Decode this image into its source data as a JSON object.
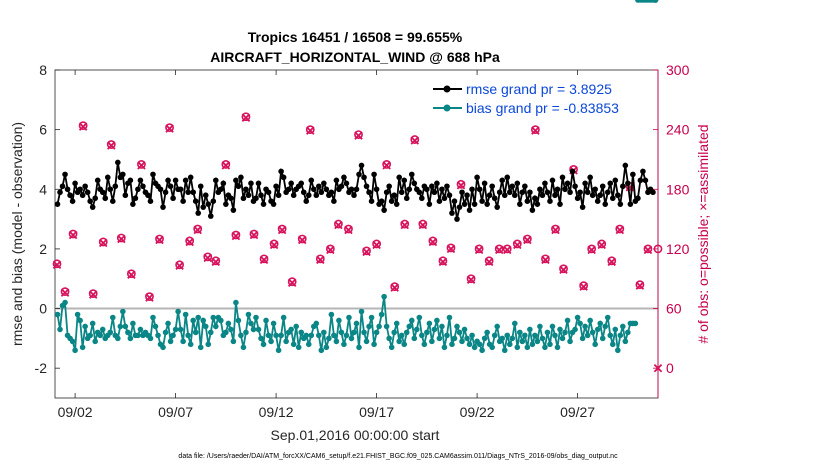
{
  "chart_data": {
    "type": "line",
    "title": "Tropics 16451 / 16508 = 99.655%",
    "subtitle": "AIRCRAFT_HORIZONTAL_WIND @ 688 hPa",
    "xlabel": "Sep.01,2016 00:00:00 start",
    "ylabel": "rmse and bias (model - observation)",
    "ylabel_right": "# of obs: o=possible; ×=assimilated",
    "footer": "data file: /Users/raeder/DAI/ATM_forcXX/CAM6_setup/f.e21.FHIST_BGC.f09_025.CAM6assim.011/Diags_NTrS_2016-09/obs_diag_output.nc",
    "x_tick_labels": [
      "09/02",
      "09/07",
      "09/12",
      "09/17",
      "09/22",
      "09/27"
    ],
    "x_tick_days": [
      2,
      7,
      12,
      17,
      22,
      27
    ],
    "x_range_days": [
      1.0,
      31.0
    ],
    "ylim": [
      -3,
      8
    ],
    "y_ticks": [
      -2,
      0,
      2,
      4,
      6,
      8
    ],
    "ylim_right": [
      -30,
      300
    ],
    "y_ticks_right": [
      0,
      60,
      120,
      180,
      240,
      300
    ],
    "zero_line": 0,
    "legend_position": "top-right",
    "legend": [
      {
        "label": "rmse grand pr = 3.8925",
        "color": "#000000"
      },
      {
        "label": "bias grand pr = -0.83853",
        "color": "#0b8686"
      }
    ],
    "x_days": [
      1.125,
      1.25,
      1.375,
      1.5,
      1.625,
      1.75,
      1.875,
      2.0,
      2.125,
      2.25,
      2.375,
      2.5,
      2.625,
      2.75,
      2.875,
      3.0,
      3.125,
      3.25,
      3.375,
      3.5,
      3.625,
      3.75,
      3.875,
      4.0,
      4.125,
      4.25,
      4.375,
      4.5,
      4.625,
      4.75,
      4.875,
      5.0,
      5.125,
      5.25,
      5.375,
      5.5,
      5.625,
      5.75,
      5.875,
      6.0,
      6.125,
      6.25,
      6.375,
      6.5,
      6.625,
      6.75,
      6.875,
      7.0,
      7.125,
      7.25,
      7.375,
      7.5,
      7.625,
      7.75,
      7.875,
      8.0,
      8.125,
      8.25,
      8.375,
      8.5,
      8.625,
      8.75,
      8.875,
      9.0,
      9.125,
      9.25,
      9.375,
      9.5,
      9.625,
      9.75,
      9.875,
      10.0,
      10.125,
      10.25,
      10.375,
      10.5,
      10.625,
      10.75,
      10.875,
      11.0,
      11.125,
      11.25,
      11.375,
      11.5,
      11.625,
      11.75,
      11.875,
      12.0,
      12.125,
      12.25,
      12.375,
      12.5,
      12.625,
      12.75,
      12.875,
      13.0,
      13.125,
      13.25,
      13.375,
      13.5,
      13.625,
      13.75,
      13.875,
      14.0,
      14.125,
      14.25,
      14.375,
      14.5,
      14.625,
      14.75,
      14.875,
      15.0,
      15.125,
      15.25,
      15.375,
      15.5,
      15.625,
      15.75,
      15.875,
      16.0,
      16.125,
      16.25,
      16.375,
      16.5,
      16.625,
      16.75,
      16.875,
      17.0,
      17.125,
      17.25,
      17.375,
      17.5,
      17.625,
      17.75,
      17.875,
      18.0,
      18.125,
      18.25,
      18.375,
      18.5,
      18.625,
      18.75,
      18.875,
      19.0,
      19.125,
      19.25,
      19.375,
      19.5,
      19.625,
      19.75,
      19.875,
      20.0,
      20.125,
      20.25,
      20.375,
      20.5,
      20.625,
      20.75,
      20.875,
      21.0,
      21.125,
      21.25,
      21.375,
      21.5,
      21.625,
      21.75,
      21.875,
      22.0,
      22.125,
      22.25,
      22.375,
      22.5,
      22.625,
      22.75,
      22.875,
      23.0,
      23.125,
      23.25,
      23.375,
      23.5,
      23.625,
      23.75,
      23.875,
      24.0,
      24.125,
      24.25,
      24.375,
      24.5,
      24.625,
      24.75,
      24.875,
      25.0,
      25.125,
      25.25,
      25.375,
      25.5,
      25.625,
      25.75,
      25.875,
      26.0,
      26.125,
      26.25,
      26.375,
      26.5,
      26.625,
      26.75,
      26.875,
      27.0,
      27.125,
      27.25,
      27.375,
      27.5,
      27.625,
      27.75,
      27.875,
      28.0,
      28.125,
      28.25,
      28.375,
      28.5,
      28.625,
      28.75,
      28.875,
      29.0,
      29.125,
      29.25,
      29.375,
      29.5,
      29.625,
      29.75,
      29.875,
      30.0,
      30.125,
      30.25,
      30.375,
      30.5,
      30.625,
      30.75,
      30.875
    ],
    "series": [
      {
        "name": "rmse grand pr = 3.8925",
        "axis": "left",
        "color": "#000000",
        "values": [
          3.5,
          3.9,
          4.1,
          4.5,
          4.0,
          3.8,
          3.6,
          4.2,
          3.9,
          4.0,
          3.8,
          4.1,
          3.9,
          3.6,
          3.4,
          3.7,
          4.3,
          4.0,
          3.9,
          3.7,
          4.4,
          4.0,
          3.6,
          4.1,
          4.9,
          4.4,
          4.5,
          3.8,
          4.2,
          4.3,
          3.5,
          3.7,
          4.0,
          4.3,
          4.1,
          3.9,
          3.8,
          3.6,
          4.5,
          4.2,
          4.1,
          4.0,
          3.4,
          3.9,
          4.3,
          4.1,
          3.7,
          4.3,
          4.0,
          4.0,
          3.6,
          4.3,
          3.9,
          4.4,
          3.9,
          3.6,
          3.2,
          4.1,
          3.4,
          3.8,
          3.5,
          3.1,
          3.6,
          4.3,
          3.9,
          4.0,
          4.2,
          3.5,
          3.8,
          3.7,
          3.3,
          4.3,
          4.1,
          4.4,
          3.7,
          4.0,
          3.8,
          4.2,
          3.6,
          3.7,
          4.2,
          3.8,
          3.5,
          4.0,
          3.9,
          3.6,
          3.5,
          4.1,
          3.8,
          4.6,
          4.4,
          3.9,
          4.0,
          4.2,
          3.8,
          4.0,
          4.1,
          4.2,
          3.9,
          3.6,
          3.8,
          4.3,
          4.0,
          3.8,
          4.1,
          3.9,
          4.2,
          4.0,
          3.8,
          3.9,
          3.6,
          4.3,
          4.0,
          4.1,
          4.4,
          4.2,
          3.9,
          4.0,
          3.8,
          4.0,
          4.5,
          4.8,
          4.4,
          4.1,
          3.9,
          3.6,
          4.5,
          4.0,
          3.5,
          3.6,
          3.3,
          3.9,
          4.1,
          3.6,
          3.8,
          3.5,
          4.4,
          3.9,
          4.3,
          3.7,
          4.0,
          4.5,
          4.2,
          4.0,
          3.9,
          3.7,
          4.1,
          4.0,
          3.5,
          4.1,
          3.9,
          4.2,
          3.6,
          4.0,
          3.7,
          4.1,
          3.8,
          3.2,
          3.6,
          3.0,
          3.4,
          3.9,
          3.5,
          3.8,
          3.3,
          4.0,
          3.5,
          4.4,
          4.0,
          3.6,
          4.2,
          3.5,
          3.8,
          4.1,
          3.7,
          3.4,
          3.9,
          4.3,
          3.8,
          4.4,
          3.9,
          4.1,
          3.8,
          4.2,
          3.5,
          3.9,
          4.1,
          3.6,
          3.9,
          3.3,
          3.7,
          3.5,
          4.0,
          3.8,
          4.2,
          3.9,
          3.6,
          4.3,
          3.8,
          4.0,
          3.5,
          4.4,
          4.0,
          4.2,
          3.9,
          4.6,
          4.1,
          3.7,
          3.9,
          3.4,
          4.2,
          3.9,
          4.4,
          3.8,
          4.0,
          3.6,
          3.8,
          4.1,
          3.5,
          3.9,
          4.2,
          3.7,
          4.3,
          3.8,
          3.5,
          4.1,
          4.8,
          4.2,
          3.5,
          4.5,
          3.6,
          3.7,
          4.3,
          4.6,
          4.3,
          3.9,
          4.0,
          3.9
        ]
      },
      {
        "name": "bias grand pr = -0.83853",
        "axis": "left",
        "color": "#0b8686",
        "values": [
          -0.2,
          -0.7,
          0.1,
          0.2,
          -0.9,
          -1.0,
          -1.1,
          -1.4,
          -0.2,
          -0.4,
          -1.3,
          -0.6,
          -1.0,
          -0.9,
          -0.5,
          -1.1,
          -0.8,
          -0.9,
          -0.7,
          -1.0,
          -0.9,
          -0.8,
          -0.3,
          -0.9,
          -1.0,
          -0.6,
          -0.1,
          -0.6,
          -0.8,
          -1.0,
          -0.5,
          -0.9,
          -0.9,
          -0.7,
          -0.9,
          -0.8,
          -0.9,
          -1.0,
          -0.3,
          -0.6,
          -0.9,
          -1.2,
          -1.3,
          -0.8,
          -0.5,
          -1.1,
          -0.9,
          -0.7,
          -0.1,
          -0.7,
          -1.1,
          -0.2,
          -0.9,
          -1.2,
          -0.4,
          -0.8,
          -0.3,
          -1.3,
          -0.4,
          -0.6,
          -1.2,
          -0.8,
          -0.3,
          -0.6,
          -0.3,
          -0.4,
          -0.9,
          -0.8,
          -0.5,
          -0.7,
          -1.1,
          0.2,
          -0.4,
          -0.9,
          -1.3,
          -0.8,
          -0.2,
          -0.5,
          -0.7,
          -0.3,
          -0.7,
          -1.0,
          -1.2,
          -0.4,
          -0.9,
          -1.1,
          -0.5,
          -0.9,
          -1.4,
          -0.9,
          -0.3,
          -1.1,
          -0.8,
          -0.7,
          -1.2,
          -0.6,
          -1.3,
          -0.8,
          -1.0,
          -0.9,
          -1.2,
          -0.9,
          -0.6,
          -0.5,
          -0.9,
          -1.4,
          -0.8,
          -1.3,
          -1.0,
          -0.2,
          -0.9,
          -1.1,
          -0.4,
          -0.8,
          -1.2,
          -0.9,
          -0.3,
          -1.0,
          -0.8,
          -0.5,
          -1.3,
          -0.1,
          -0.8,
          -1.1,
          -0.6,
          -0.3,
          -1.2,
          -0.8,
          -0.6,
          -0.2,
          0.4,
          -0.6,
          -1.0,
          -1.3,
          -0.8,
          -0.5,
          -1.1,
          -0.9,
          -1.2,
          -0.8,
          -0.6,
          -0.4,
          -1.0,
          -0.7,
          -0.3,
          -0.9,
          -1.2,
          -0.8,
          -0.5,
          -1.1,
          -0.7,
          -0.4,
          -1.0,
          -0.6,
          -1.3,
          -0.9,
          -0.3,
          -1.2,
          -1.0,
          -0.6,
          -0.8,
          -1.1,
          -0.7,
          -1.0,
          -1.2,
          -0.9,
          -1.3,
          -1.1,
          -1.2,
          -1.4,
          -1.0,
          -0.8,
          -1.2,
          -1.3,
          -0.9,
          -0.6,
          -1.1,
          -1.0,
          -1.4,
          -0.9,
          -1.2,
          -1.0,
          -0.5,
          -1.3,
          -0.8,
          -1.1,
          -0.9,
          -1.3,
          -0.7,
          -1.2,
          -0.9,
          -1.1,
          -0.6,
          -1.0,
          -1.3,
          -0.8,
          -1.2,
          -0.6,
          -0.9,
          -1.3,
          -0.7,
          -1.0,
          -0.8,
          -0.4,
          -1.1,
          -0.8,
          -0.7,
          -0.3,
          -0.5,
          -1.0,
          -0.6,
          -0.9,
          -0.4,
          -0.8,
          -1.2,
          -0.7,
          -0.5,
          -1.0,
          -0.6,
          -0.3,
          -0.9,
          -1.2,
          -0.7,
          -1.4,
          -0.9,
          -0.6,
          -1.1,
          -0.8,
          -0.5,
          -0.5,
          -0.5
        ]
      },
      {
        "name": "",
        "axis": "right",
        "color": "#d6135c",
        "marker": "o",
        "x_days": [
          1.1,
          1.5,
          1.9,
          2.4,
          2.9,
          3.4,
          3.8,
          4.3,
          4.8,
          5.3,
          5.7,
          6.2,
          6.7,
          7.2,
          7.7,
          8.1,
          8.6,
          9.0,
          9.5,
          10.0,
          10.5,
          10.9,
          11.4,
          11.9,
          12.3,
          12.8,
          13.3,
          13.7,
          14.2,
          14.7,
          15.1,
          15.6,
          16.1,
          16.5,
          17.0,
          17.5,
          17.9,
          18.4,
          18.9,
          19.3,
          19.8,
          20.3,
          20.7,
          21.2,
          21.7,
          22.1,
          22.6,
          23.1,
          23.5,
          24.0,
          24.5,
          24.9,
          25.4,
          25.9,
          26.3,
          26.8,
          27.3,
          27.7,
          28.2,
          28.7,
          29.1,
          29.6,
          30.1,
          30.5,
          31.0
        ],
        "values": [
          105,
          77,
          135,
          244,
          75,
          127,
          225,
          131,
          95,
          205,
          72,
          130,
          242,
          104,
          128,
          140,
          112,
          108,
          205,
          134,
          253,
          135,
          110,
          125,
          140,
          87,
          130,
          240,
          110,
          120,
          145,
          140,
          235,
          118,
          125,
          205,
          82,
          145,
          230,
          145,
          128,
          108,
          121,
          185,
          90,
          120,
          108,
          120,
          120,
          125,
          130,
          240,
          110,
          140,
          100,
          200,
          83,
          120,
          125,
          108,
          140,
          183,
          84,
          120,
          120
        ]
      },
      {
        "name": "",
        "axis": "right",
        "color": "#d6135c",
        "marker": "x",
        "x_days": [
          1.1,
          1.5,
          1.9,
          2.4,
          2.9,
          3.4,
          3.8,
          4.3,
          4.8,
          5.3,
          5.7,
          6.2,
          6.7,
          7.2,
          7.7,
          8.1,
          8.6,
          9.0,
          9.5,
          10.0,
          10.5,
          10.9,
          11.4,
          11.9,
          12.3,
          12.8,
          13.3,
          13.7,
          14.2,
          14.7,
          15.1,
          15.6,
          16.1,
          16.5,
          17.0,
          17.5,
          17.9,
          18.4,
          18.9,
          19.3,
          19.8,
          20.3,
          20.7,
          21.2,
          21.7,
          22.1,
          22.6,
          23.1,
          23.5,
          24.0,
          24.5,
          24.9,
          25.4,
          25.9,
          26.3,
          26.8,
          27.3,
          27.7,
          28.2,
          28.7,
          29.1,
          29.6,
          30.1,
          30.5,
          31.0
        ],
        "values": [
          104,
          76,
          134,
          243,
          74,
          126,
          224,
          130,
          94,
          204,
          71,
          129,
          241,
          103,
          127,
          139,
          111,
          107,
          204,
          133,
          252,
          134,
          109,
          124,
          139,
          86,
          129,
          239,
          109,
          119,
          144,
          139,
          234,
          117,
          124,
          204,
          81,
          144,
          229,
          144,
          127,
          107,
          120,
          184,
          89,
          119,
          107,
          119,
          119,
          124,
          129,
          239,
          109,
          139,
          99,
          199,
          82,
          119,
          124,
          107,
          139,
          182,
          83,
          119,
          0
        ]
      }
    ]
  }
}
